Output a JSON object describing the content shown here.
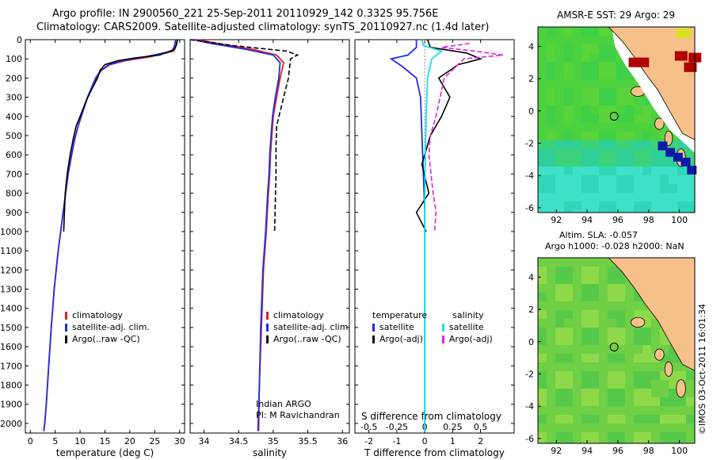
{
  "header": {
    "line1": "Argo profile: IN 2900560_221 25-Sep-2011 20110929_142 0.332S 95.756E",
    "line2": "Climatology: CARS2009. Satellite-adjusted climatology: synTS_20110927.nc (1.4d later)"
  },
  "colors": {
    "climatology": "#e02020",
    "satellite": "#1f2ee8",
    "argo": "#000000",
    "sat_salinity": "#19e0e8",
    "argo_salinity": "#e020e0",
    "land": "#f6c08a"
  },
  "chart_data": [
    {
      "type": "line",
      "panel": "temperature",
      "xlabel": "temperature (deg C)",
      "ylabel": "",
      "xlim": [
        -1,
        31
      ],
      "xticks": [
        0,
        5,
        10,
        15,
        20,
        25,
        30
      ],
      "ylim": [
        2050,
        0
      ],
      "yticks": [
        0,
        100,
        200,
        300,
        400,
        500,
        600,
        700,
        800,
        900,
        1000,
        1100,
        1200,
        1300,
        1400,
        1500,
        1600,
        1700,
        1800,
        1900,
        2000
      ],
      "series": [
        {
          "name": "climatology",
          "x": [
            29.5,
            29.3,
            28.8,
            24,
            19,
            16,
            14.3,
            13.2,
            12.4,
            11.5,
            10.5,
            9.6,
            8.9,
            8.3,
            7.6,
            6.6,
            5.6,
            4.8,
            4.2,
            3.7,
            3.2,
            2.9,
            2.7
          ],
          "y": [
            0,
            30,
            60,
            90,
            110,
            130,
            160,
            200,
            250,
            300,
            380,
            450,
            520,
            600,
            700,
            900,
            1100,
            1300,
            1500,
            1700,
            1900,
            2000,
            2040
          ]
        },
        {
          "name": "satellite-adj. clim.",
          "x": [
            29.2,
            29,
            28.5,
            23,
            18.5,
            15.8,
            14.2,
            13.1,
            12.3,
            11.5,
            10.5,
            9.6,
            8.9,
            8.3,
            7.6,
            6.6,
            5.6,
            4.8,
            4.2,
            3.7,
            3.2,
            2.9,
            2.7
          ],
          "y": [
            0,
            30,
            60,
            90,
            110,
            130,
            160,
            200,
            250,
            300,
            380,
            450,
            520,
            600,
            700,
            900,
            1100,
            1300,
            1500,
            1700,
            1900,
            2000,
            2040
          ]
        },
        {
          "name": "Argo(..raw -QC)",
          "x": [
            29.6,
            29.4,
            29,
            26,
            21,
            17.5,
            15,
            14,
            13.5,
            12.5,
            11.2,
            10,
            9.2,
            8.6,
            8,
            7.4,
            7,
            6.7
          ],
          "y": [
            0,
            25,
            50,
            80,
            95,
            110,
            130,
            160,
            200,
            250,
            320,
            400,
            450,
            520,
            600,
            700,
            800,
            1000
          ]
        }
      ],
      "legend": [
        "climatology",
        "satellite-adj. clim.",
        "Argo(..raw -QC)"
      ]
    },
    {
      "type": "line",
      "panel": "salinity",
      "xlabel": "salinity",
      "xlim": [
        33.8,
        36.1
      ],
      "xticks": [
        34,
        34.5,
        35,
        35.5,
        36
      ],
      "ylim": [
        2050,
        0
      ],
      "series": [
        {
          "name": "climatology",
          "x": [
            33.9,
            34.2,
            34.7,
            35.05,
            35.15,
            35.1,
            35.05,
            35.0,
            34.98,
            34.96,
            34.95,
            34.93,
            34.9,
            34.86,
            34.83,
            34.8,
            34.79
          ],
          "y": [
            0,
            20,
            50,
            80,
            120,
            200,
            300,
            400,
            500,
            600,
            700,
            800,
            1000,
            1200,
            1500,
            1800,
            2040
          ]
        },
        {
          "name": "satellite-adj. clim.",
          "x": [
            33.85,
            34.1,
            34.6,
            35.0,
            35.1,
            35.08,
            35.03,
            34.99,
            34.97,
            34.95,
            34.94,
            34.92,
            34.89,
            34.85,
            34.82,
            34.8,
            34.78
          ],
          "y": [
            0,
            20,
            50,
            80,
            120,
            200,
            300,
            400,
            500,
            600,
            700,
            800,
            1000,
            1200,
            1500,
            1800,
            2040
          ]
        },
        {
          "name": "Argo(..raw -QC)",
          "x": [
            33.8,
            34.4,
            35.2,
            35.35,
            35.25,
            35.22,
            35.15,
            35.05,
            35.04,
            35.04,
            35.03,
            35.02
          ],
          "y": [
            0,
            30,
            60,
            80,
            100,
            200,
            300,
            450,
            550,
            700,
            850,
            1000
          ]
        }
      ],
      "legend": [
        "climatology",
        "satellite-adj. clim.",
        "Argo(..raw -QC)"
      ],
      "annotation": [
        "Indian ARGO",
        "PI: M Ravichandran"
      ]
    },
    {
      "type": "line",
      "panel": "difference",
      "xlabel": "T difference from climatology",
      "xlabel_top": "S difference from climatology",
      "xlim": [
        -2.5,
        3.2
      ],
      "xticks": [
        -2,
        -1,
        0,
        1,
        2
      ],
      "xticks_top": [
        "-0.5",
        "-0.25",
        "0",
        "0.25",
        "0.5"
      ],
      "ylim": [
        2050,
        0
      ],
      "series": [
        {
          "name": "temperature satellite",
          "x": [
            -0.3,
            -0.3,
            -0.6,
            -1.2,
            -0.8,
            -0.3,
            -0.15,
            -0.1,
            -0.05,
            0,
            0,
            0,
            0,
            0
          ],
          "y": [
            0,
            40,
            80,
            100,
            140,
            200,
            300,
            500,
            700,
            900,
            1200,
            1500,
            1800,
            2040
          ]
        },
        {
          "name": "temperature Argo(-adj)",
          "x": [
            0.1,
            0.2,
            1.5,
            2.0,
            1.2,
            0.5,
            0.9,
            0.6,
            0.2,
            -0.1,
            0.15,
            -0.3,
            0.05
          ],
          "y": [
            0,
            40,
            70,
            100,
            130,
            200,
            300,
            400,
            500,
            650,
            800,
            900,
            1000
          ]
        },
        {
          "name": "salinity satellite",
          "x": [
            -0.1,
            -0.05,
            0.6,
            0.25,
            0.1,
            0.05,
            0.02,
            0,
            0,
            0,
            0,
            0
          ],
          "y": [
            0,
            30,
            60,
            100,
            200,
            400,
            600,
            800,
            1000,
            1300,
            1700,
            2040
          ]
        },
        {
          "name": "salinity Argo(-adj)",
          "x": [
            1.6,
            0.6,
            1.8,
            2.8,
            1.4,
            0.7,
            0.4,
            0.2,
            0.15,
            0.3,
            0.4,
            0.35
          ],
          "y": [
            20,
            40,
            60,
            80,
            100,
            200,
            400,
            500,
            600,
            800,
            900,
            1000
          ]
        }
      ],
      "legend": {
        "temperature": "temperature",
        "salinity": "salinity",
        "sat": "satellite",
        "argo": "Argo(-adj)"
      }
    },
    {
      "type": "heatmap",
      "panel": "sst-map",
      "title": "AMSR-E SST: 29 Argo: 29",
      "xlim": [
        90.8,
        101
      ],
      "ylim": [
        -6.3,
        5.2
      ],
      "xticks": [
        92,
        94,
        96,
        98,
        100
      ],
      "yticks": [
        4,
        2,
        0,
        -2,
        -4,
        -6
      ],
      "argo_marker": {
        "lon": 95.756,
        "lat": -0.332
      }
    },
    {
      "type": "heatmap",
      "panel": "sla-map",
      "title_lines": [
        "Altim. SLA: -0.057",
        "Argo h1000: -0.028 h2000: NaN"
      ],
      "xlim": [
        90.8,
        101
      ],
      "ylim": [
        -6.3,
        5.2
      ],
      "xticks": [
        92,
        94,
        96,
        98,
        100
      ],
      "yticks": [
        4,
        2,
        0,
        -2,
        -4,
        -6
      ],
      "argo_marker": {
        "lon": 95.756,
        "lat": -0.332
      }
    }
  ],
  "footer": "©IMOS 03-Oct-2011 16:01:34"
}
